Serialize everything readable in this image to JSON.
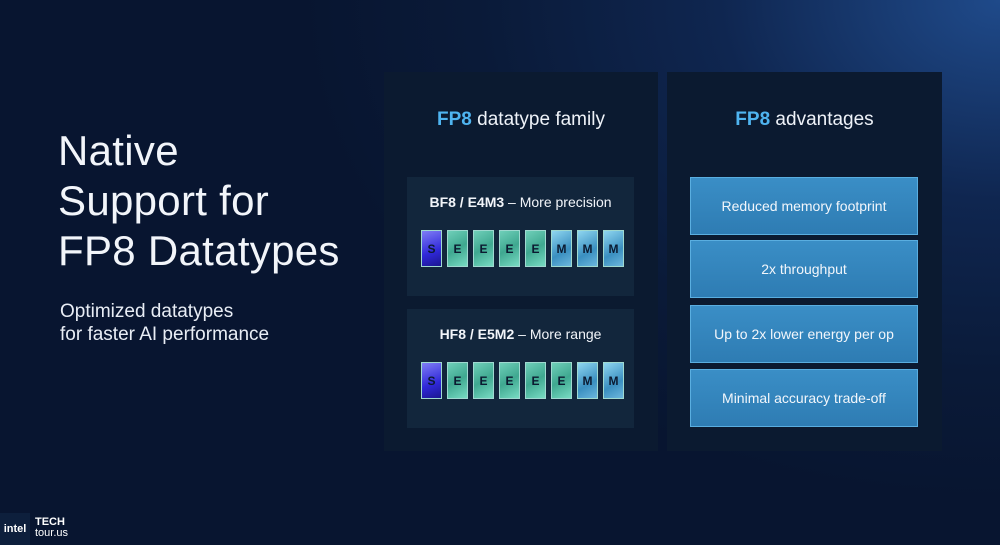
{
  "title": {
    "lines": [
      "Native",
      "Support for",
      "FP8 Datatypes"
    ]
  },
  "subtitle": {
    "lines": [
      "Optimized datatypes",
      "for faster AI performance"
    ]
  },
  "family_panel": {
    "heading_accent": "FP8",
    "heading_rest": " datatype family",
    "formats": [
      {
        "name": "BF8 / E4M3",
        "desc": " – More precision",
        "bits": [
          "S",
          "E",
          "E",
          "E",
          "E",
          "M",
          "M",
          "M"
        ]
      },
      {
        "name": "HF8 / E5M2",
        "desc": " – More range",
        "bits": [
          "S",
          "E",
          "E",
          "E",
          "E",
          "E",
          "M",
          "M"
        ]
      }
    ]
  },
  "advantages_panel": {
    "heading_accent": "FP8",
    "heading_rest": " advantages",
    "items": [
      "Reduced memory footprint",
      "2x throughput",
      "Up to 2x lower energy per op",
      "Minimal accuracy trade-off"
    ]
  },
  "footer": {
    "logo": "intel",
    "brand_line1": "TECH",
    "brand_line2": "tour.us"
  },
  "colors": {
    "accent": "#4fb4f0",
    "sign_bit": "#3a33e0",
    "exponent_bit": "#4fbfa5",
    "mantissa_bit": "#5fb0dd",
    "advantage_box": "#3386bd"
  }
}
